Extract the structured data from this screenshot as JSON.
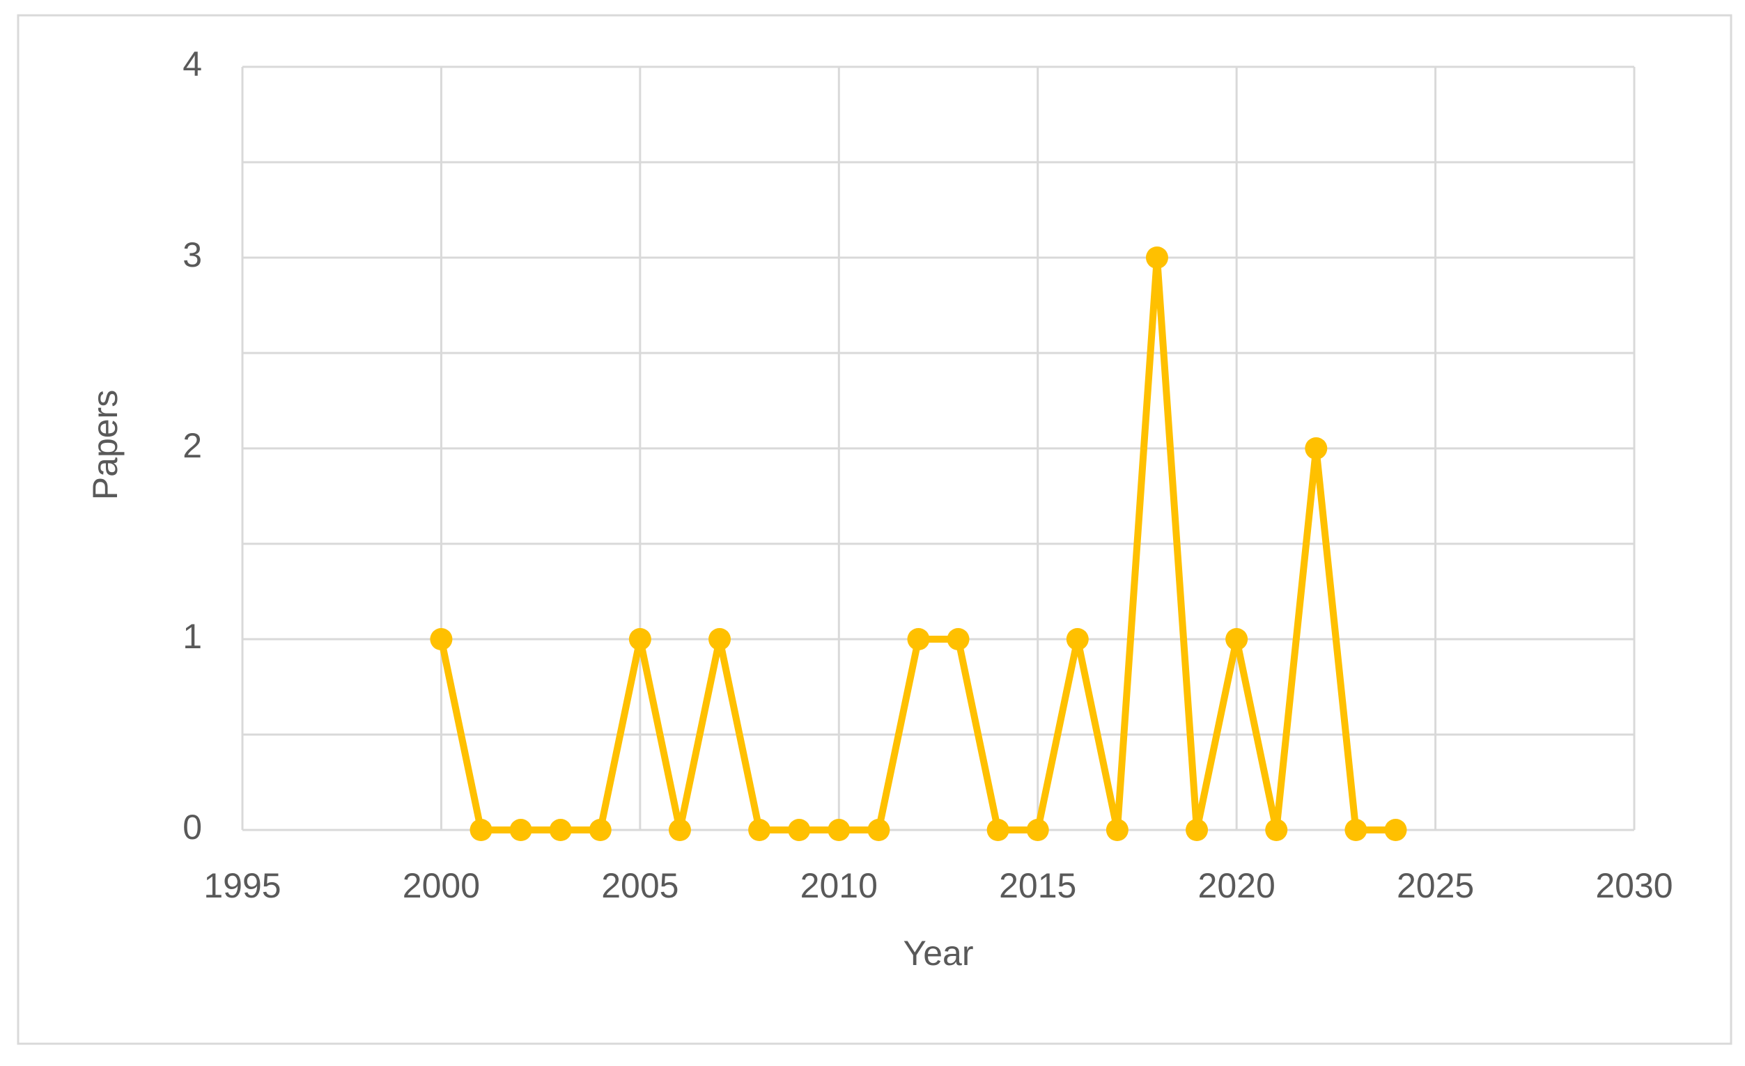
{
  "chart_data": {
    "type": "line",
    "xlabel": "Year",
    "ylabel": "Papers",
    "x": [
      2000,
      2001,
      2002,
      2003,
      2004,
      2005,
      2006,
      2007,
      2008,
      2009,
      2010,
      2011,
      2012,
      2013,
      2014,
      2015,
      2016,
      2017,
      2018,
      2019,
      2020,
      2021,
      2022,
      2023,
      2024
    ],
    "series": [
      {
        "color": "#FFC000",
        "values": [
          1,
          0,
          0,
          0,
          0,
          1,
          0,
          1,
          0,
          0,
          0,
          0,
          1,
          1,
          0,
          0,
          1,
          0,
          3,
          0,
          1,
          0,
          2,
          0,
          0
        ]
      }
    ],
    "xlim": [
      1995,
      2030
    ],
    "xticks": [
      1995,
      2000,
      2005,
      2010,
      2015,
      2020,
      2025,
      2030
    ],
    "ylim": [
      0,
      4
    ],
    "yticks": [
      0,
      1,
      2,
      3,
      4
    ],
    "yminorticks": [
      0.5,
      1.5,
      2.5,
      3.5
    ],
    "grid": true,
    "markers": true
  }
}
